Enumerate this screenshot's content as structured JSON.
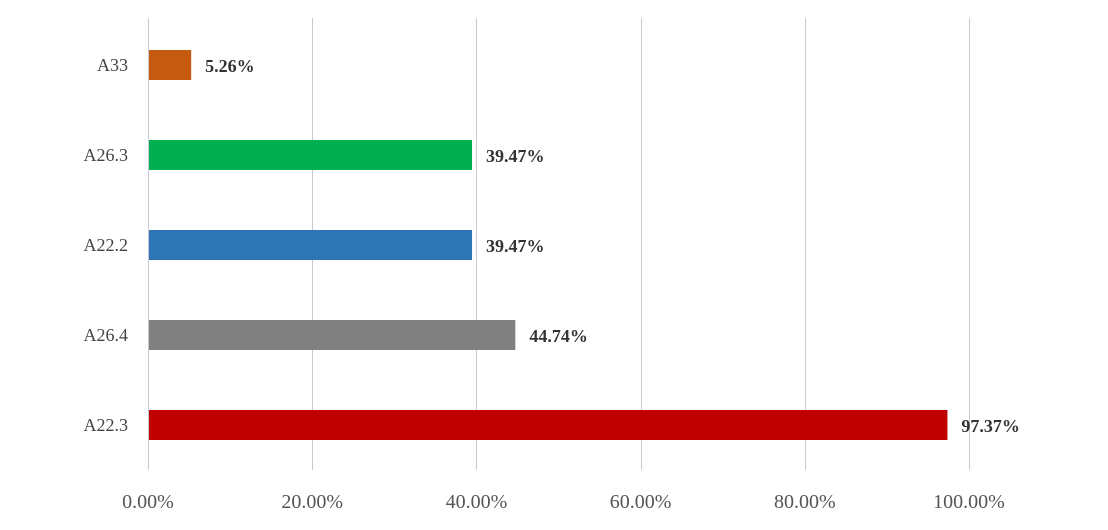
{
  "chart_data": {
    "type": "bar",
    "orientation": "horizontal",
    "categories": [
      "A33",
      "A26.3",
      "A22.2",
      "A26.4",
      "A22.3"
    ],
    "values": [
      5.26,
      39.47,
      39.47,
      44.74,
      97.37
    ],
    "data_labels": [
      "5.26%",
      "39.47%",
      "39.47%",
      "44.74%",
      "97.37%"
    ],
    "bar_colors": [
      "#C55A11",
      "#00B050",
      "#2E75B6",
      "#808080",
      "#C00000"
    ],
    "title": "",
    "xlabel": "",
    "ylabel": "",
    "xlim": [
      0,
      100
    ],
    "x_ticks": [
      0,
      20,
      40,
      60,
      80,
      100
    ],
    "x_tick_labels": [
      "0.00%",
      "20.00%",
      "40.00%",
      "60.00%",
      "80.00%",
      "100.00%"
    ],
    "grid": true,
    "grid_color": "#C9C9D6",
    "legend": "none"
  }
}
